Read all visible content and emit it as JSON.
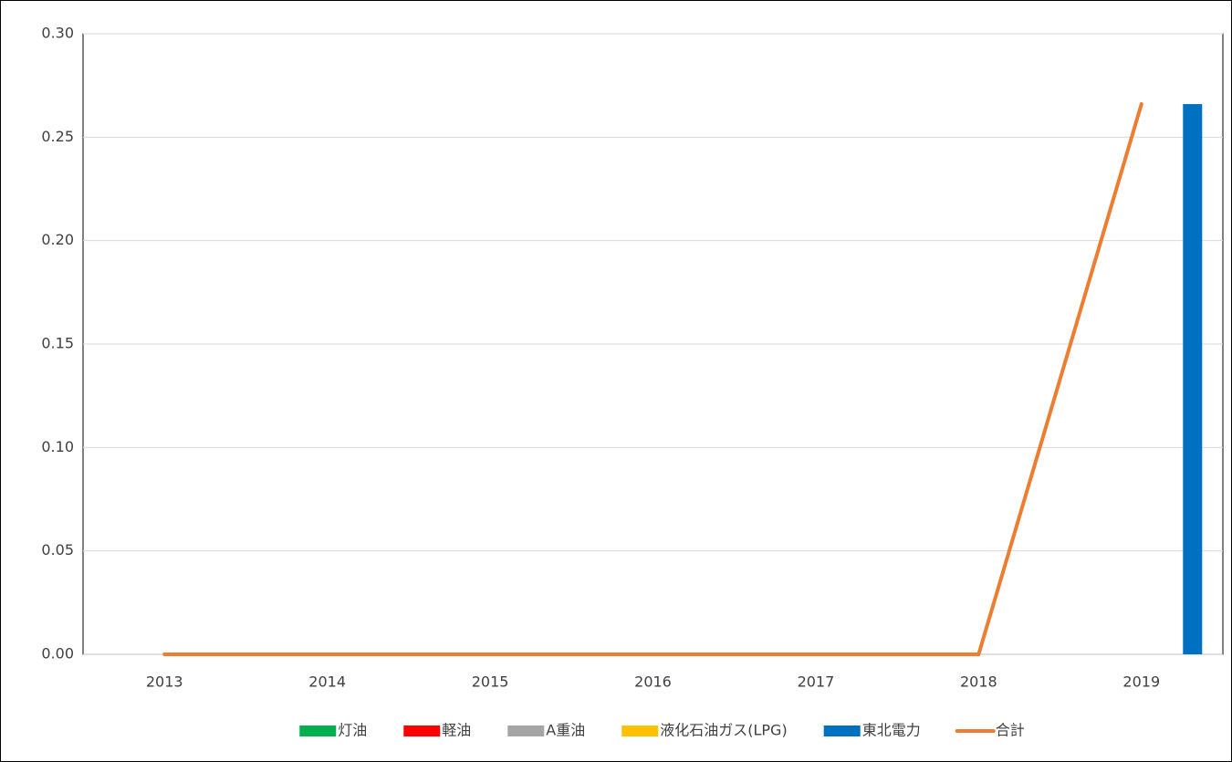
{
  "chart_data": {
    "type": "bar",
    "categories": [
      "2013",
      "2014",
      "2015",
      "2016",
      "2017",
      "2018",
      "2019"
    ],
    "series": [
      {
        "name": "灯油",
        "color": "#00b050",
        "values": [
          0,
          0,
          0,
          0,
          0,
          0,
          0
        ]
      },
      {
        "name": "軽油",
        "color": "#ff0000",
        "values": [
          0,
          0,
          0,
          0,
          0,
          0,
          0
        ]
      },
      {
        "name": "A重油",
        "color": "#a5a5a5",
        "values": [
          0,
          0,
          0,
          0,
          0,
          0,
          0
        ]
      },
      {
        "name": "液化石油ガス(LPG)",
        "color": "#ffc000",
        "values": [
          0,
          0,
          0,
          0,
          0,
          0,
          0
        ]
      },
      {
        "name": "東北電力",
        "color": "#0070c0",
        "values": [
          0,
          0,
          0,
          0,
          0,
          0,
          0.266
        ]
      },
      {
        "name": "合計",
        "color": "#ed7d31",
        "type": "line",
        "values": [
          0,
          0,
          0,
          0,
          0,
          0,
          0.266
        ]
      }
    ],
    "ylim": [
      0,
      0.3
    ],
    "yticks": [
      {
        "value": 0,
        "label": "0.00"
      },
      {
        "value": 0.05,
        "label": "0.05"
      },
      {
        "value": 0.1,
        "label": "0.10"
      },
      {
        "value": 0.15,
        "label": "0.15"
      },
      {
        "value": 0.2,
        "label": "0.20"
      },
      {
        "value": 0.25,
        "label": "0.25"
      },
      {
        "value": 0.3,
        "label": "0.30"
      }
    ],
    "grid": true,
    "legend": "bottom"
  }
}
